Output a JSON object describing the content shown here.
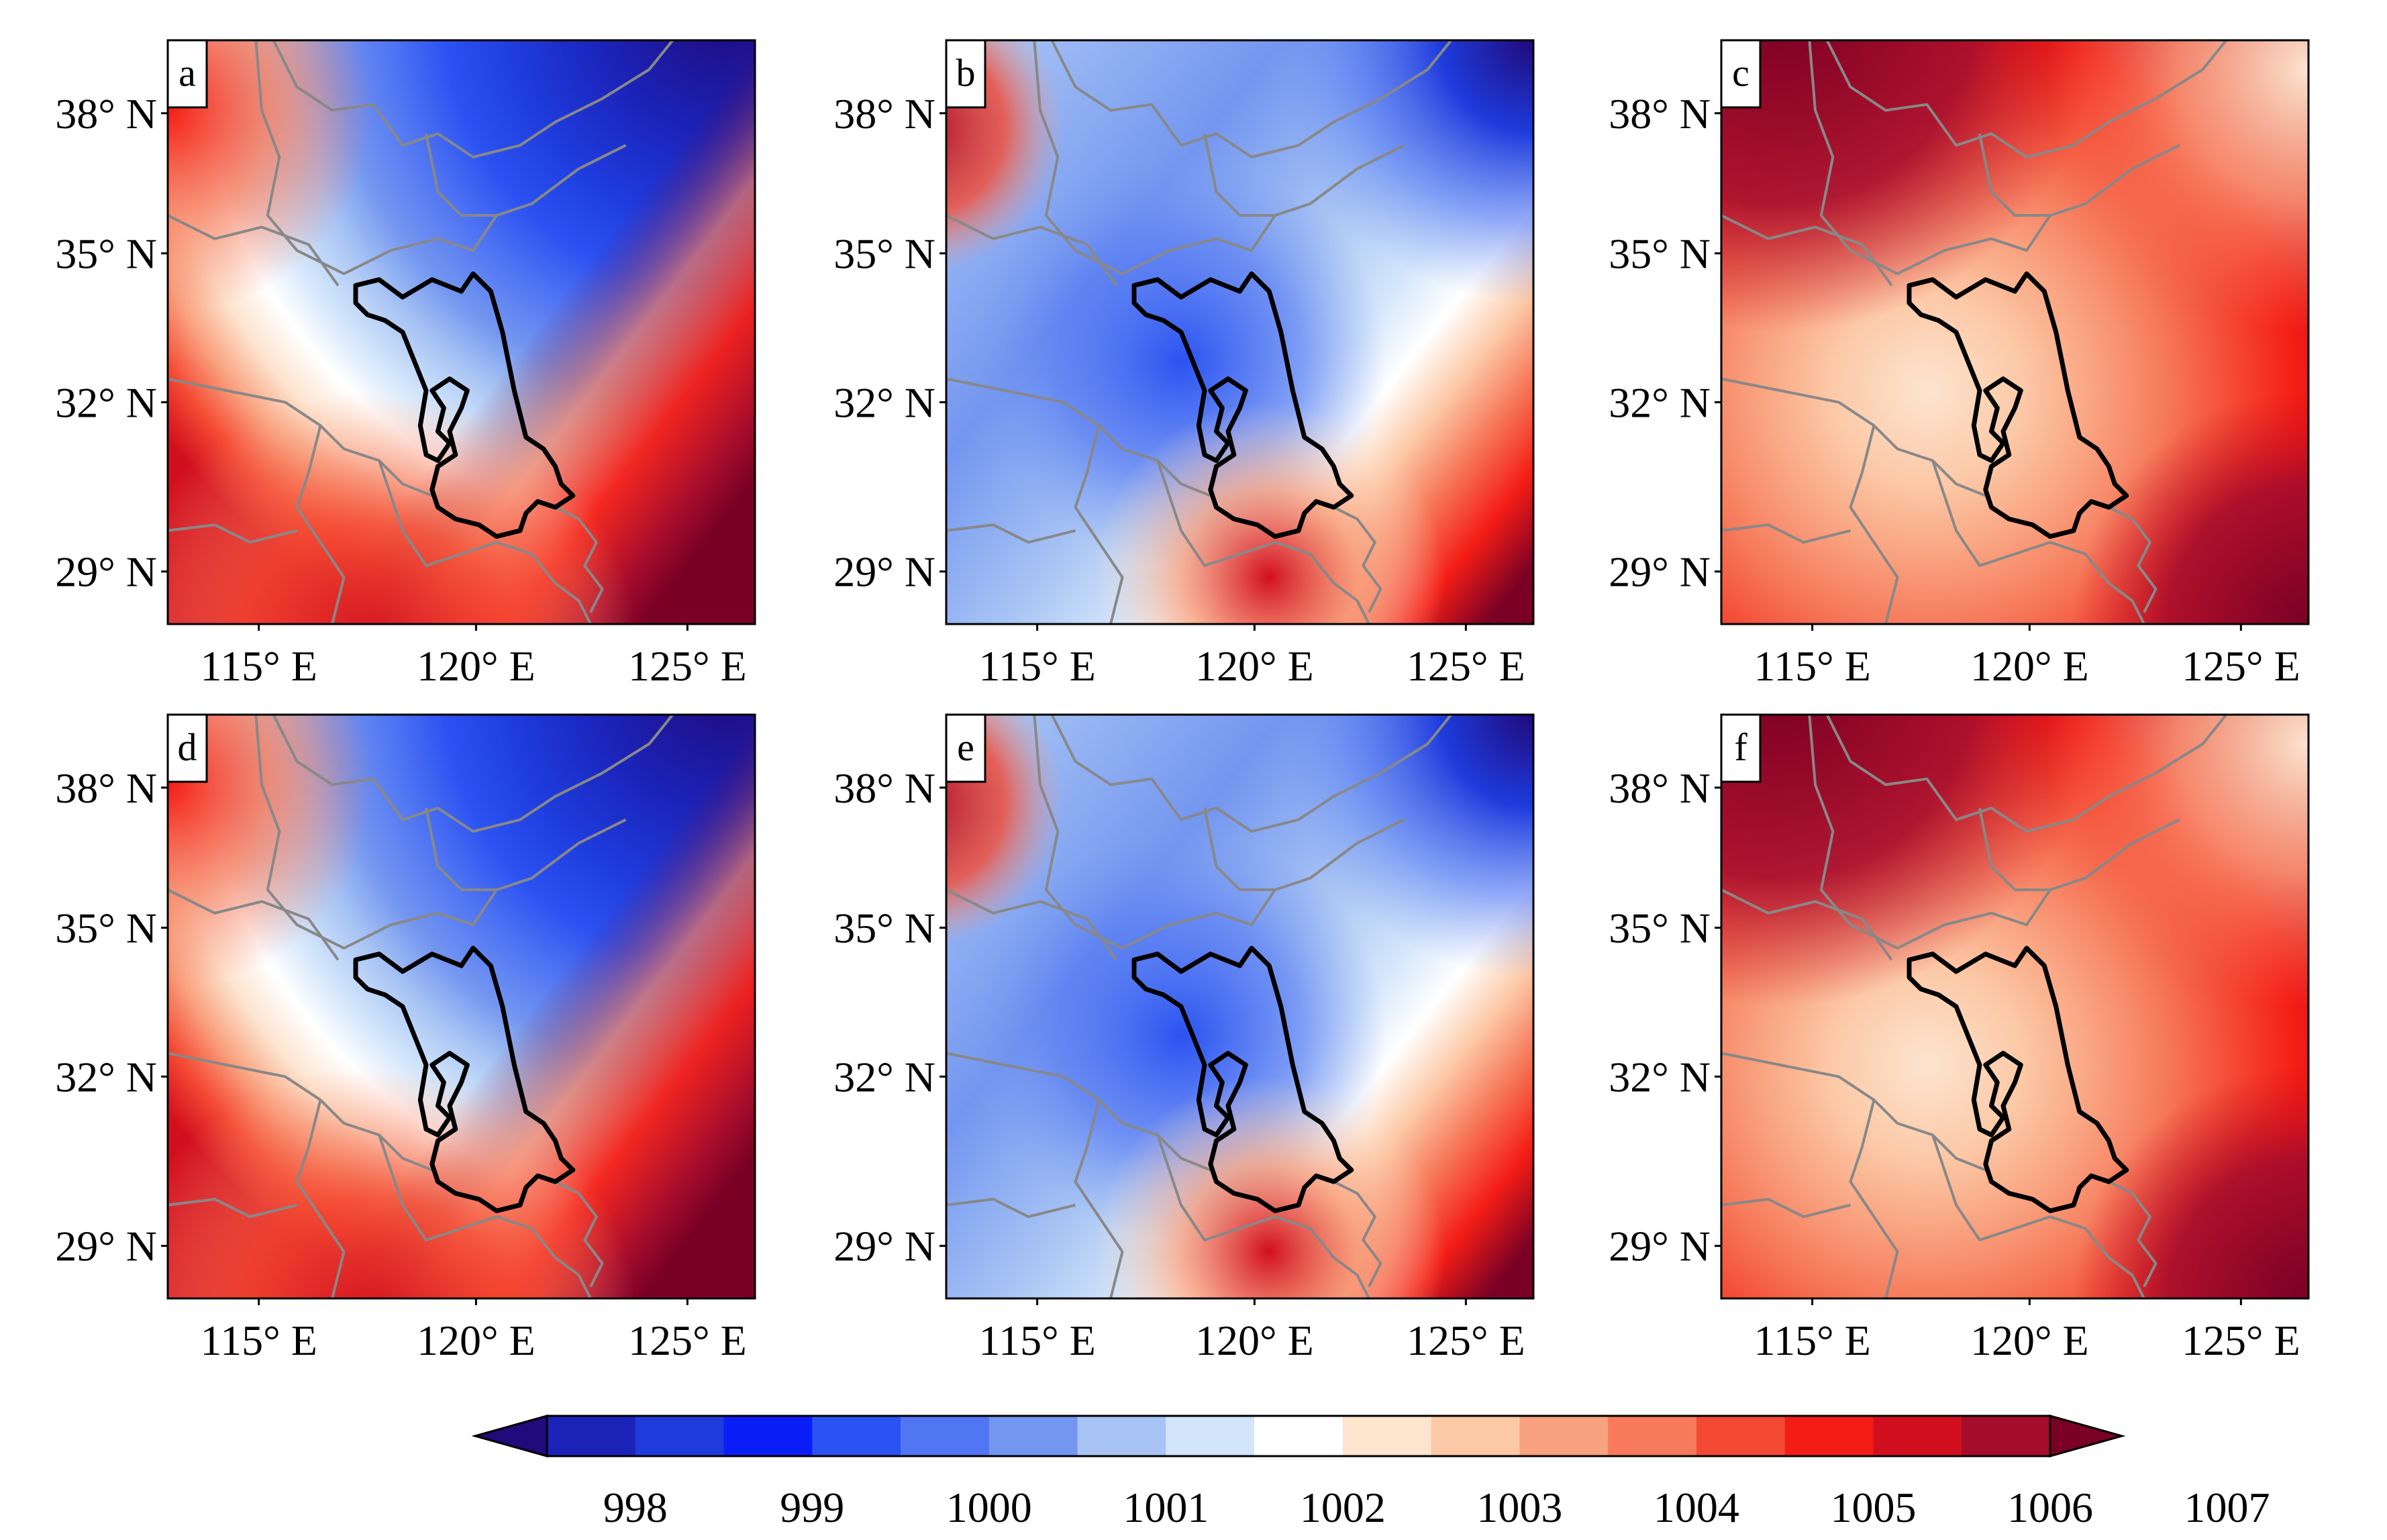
{
  "figure": {
    "type": "contour_map_panels",
    "panels": [
      {
        "letter": "a",
        "pattern": "cyclone"
      },
      {
        "letter": "b",
        "pattern": "patchy"
      },
      {
        "letter": "c",
        "pattern": "warm"
      },
      {
        "letter": "d",
        "pattern": "cyclone"
      },
      {
        "letter": "e",
        "pattern": "patchy"
      },
      {
        "letter": "f",
        "pattern": "warm"
      }
    ],
    "lat_ticks": [
      "38° N",
      "35° N",
      "32° N",
      "29° N"
    ],
    "lon_ticks": [
      "115° E",
      "120° E",
      "125° E"
    ],
    "colorbar": {
      "tick_labels": [
        "998",
        "999",
        "1000",
        "1001",
        "1002",
        "1003",
        "1004",
        "1005",
        "1006",
        "1007"
      ],
      "colors": [
        "#200a7c",
        "#1b23b9",
        "#1e3bdc",
        "#0a1ff7",
        "#2b52f2",
        "#5176f3",
        "#7396f0",
        "#a8c4f4",
        "#d2e5fb",
        "#ffffff",
        "#fde4cf",
        "#fcc9a7",
        "#f9a27f",
        "#f67a5b",
        "#f44a33",
        "#f41d15",
        "#d20f1e",
        "#a60c2c",
        "#7a0125"
      ],
      "boundary_color": "#000000",
      "province_line_color": "#888888"
    }
  }
}
